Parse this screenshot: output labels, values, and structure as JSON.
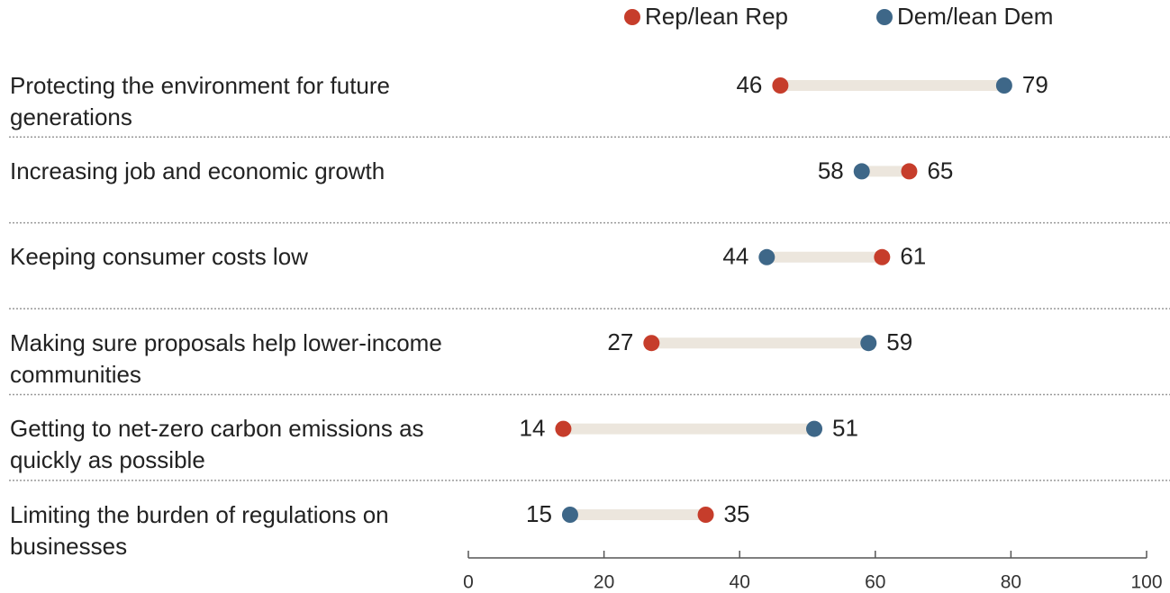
{
  "chart_data": {
    "type": "dot",
    "categories": [
      "Protecting the environment for future generations",
      "Increasing job and economic growth",
      "Keeping consumer costs low",
      "Making sure proposals help lower-income communities",
      "Getting to net-zero carbon emissions as quickly as possible",
      "Limiting the burden of regulations on businesses"
    ],
    "series": [
      {
        "name": "Rep/lean Rep",
        "color": "#c63d2b",
        "values": [
          46,
          65,
          61,
          27,
          14,
          35
        ]
      },
      {
        "name": "Dem/lean Dem",
        "color": "#3e6788",
        "values": [
          79,
          58,
          44,
          59,
          51,
          15
        ]
      }
    ],
    "xlim": [
      0,
      100
    ],
    "xticks": [
      0,
      20,
      40,
      60,
      80,
      100
    ]
  }
}
